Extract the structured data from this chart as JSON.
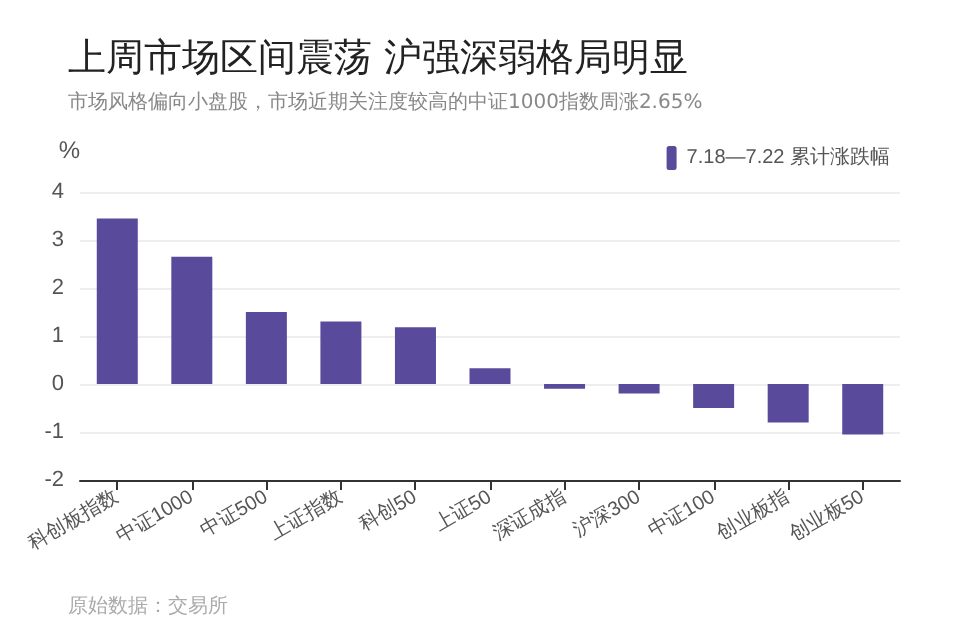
{
  "chart_data": {
    "type": "bar",
    "title": "上周市场区间震荡 沪强深弱格局明显",
    "subtitle": "市场风格偏向小盘股，市场近期关注度较高的中证1000指数周涨2.65%",
    "ylabel": "%",
    "categories": [
      "科创板指数",
      "中证1000",
      "中证500",
      "上证指数",
      "科创50",
      "上证50",
      "深证成指",
      "沪深300",
      "中证100",
      "创业板指",
      "创业板50"
    ],
    "series": [
      {
        "name": "7.18—7.22 累计涨跌幅",
        "color": "#5a4a9c",
        "values": [
          3.45,
          2.65,
          1.5,
          1.3,
          1.18,
          0.33,
          -0.1,
          -0.2,
          -0.5,
          -0.8,
          -1.05
        ]
      }
    ],
    "ylim": [
      -2,
      4
    ],
    "yticks": [
      -2,
      -1,
      0,
      1,
      2,
      3,
      4
    ],
    "grid": "y",
    "legend": "top right",
    "annotations": [
      "原始数据：交易所"
    ]
  }
}
